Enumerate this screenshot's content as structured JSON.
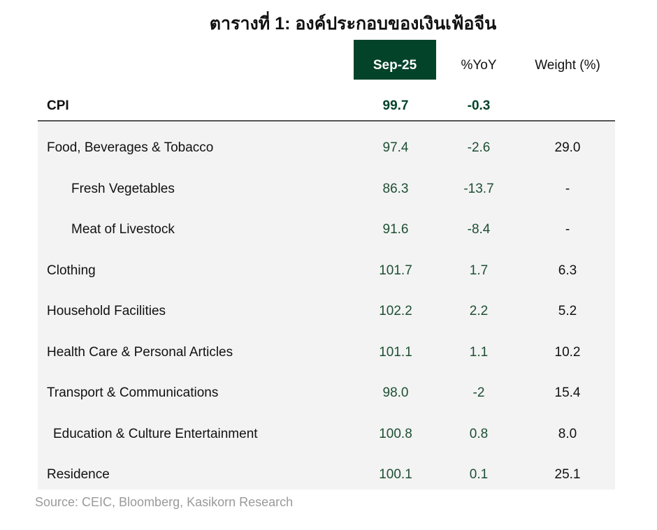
{
  "title": "ตารางที่ 1: องค์ประกอบของเงินเฟ้อจีน",
  "headers": {
    "period": "Sep-25",
    "yoy": "%YoY",
    "weight": "Weight (%)"
  },
  "colors": {
    "header_bg": "#03432a",
    "value_text": "#1d4f33",
    "panel_bg": "#f3f3f3"
  },
  "cpi": {
    "label": "CPI",
    "value": "99.7",
    "yoy": "-0.3"
  },
  "rows": [
    {
      "label": "Food, Beverages & Tobacco",
      "value": "97.4",
      "yoy": "-2.6",
      "weight": "29.0"
    },
    {
      "label": "Fresh Vegetables",
      "value": "86.3",
      "yoy": "-13.7",
      "weight": "-"
    },
    {
      "label": "Meat of Livestock",
      "value": "91.6",
      "yoy": "-8.4",
      "weight": "-"
    },
    {
      "label": "Clothing",
      "value": "101.7",
      "yoy": "1.7",
      "weight": "6.3"
    },
    {
      "label": "Household Facilities",
      "value": "102.2",
      "yoy": "2.2",
      "weight": "5.2"
    },
    {
      "label": "Health Care & Personal Articles",
      "value": "101.1",
      "yoy": "1.1",
      "weight": "10.2"
    },
    {
      "label": "Transport & Communications",
      "value": "98.0",
      "yoy": "-2",
      "weight": "15.4"
    },
    {
      "label": "Education & Culture Entertainment",
      "value": "100.8",
      "yoy": "0.8",
      "weight": "8.0"
    },
    {
      "label": "Residence",
      "value": "100.1",
      "yoy": "0.1",
      "weight": "25.1"
    }
  ],
  "source": "Source: CEIC, Bloomberg, Kasikorn Research"
}
